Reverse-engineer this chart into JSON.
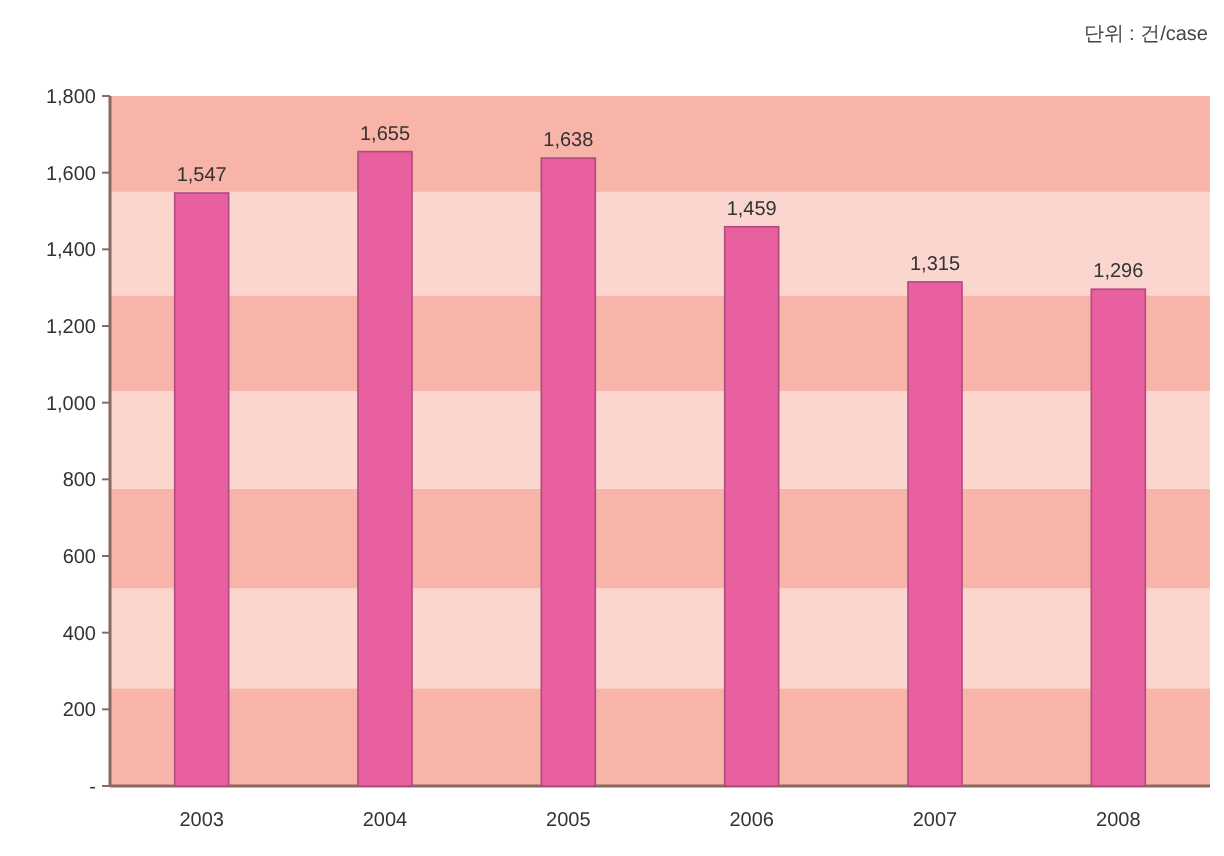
{
  "chart_data": {
    "type": "bar",
    "categories": [
      "2003",
      "2004",
      "2005",
      "2006",
      "2007",
      "2008"
    ],
    "values": [
      1547,
      1655,
      1638,
      1459,
      1315,
      1296
    ],
    "value_labels": [
      "1,547",
      "1,655",
      "1,638",
      "1,459",
      "1,315",
      "1,296"
    ],
    "color": "#e8609f",
    "ylim": [
      0,
      1800
    ],
    "yticks": [
      {
        "value": 0,
        "label": "-"
      },
      200,
      400,
      600,
      800,
      {
        "value": 1000,
        "label": "1,000"
      },
      {
        "value": 1200,
        "label": "1,200"
      },
      {
        "value": 1400,
        "label": "1,400"
      },
      {
        "value": 1600,
        "label": "1,600"
      },
      {
        "value": 1800,
        "label": "1,800"
      }
    ],
    "bands": [
      {
        "axis": "y",
        "from": 0,
        "to": 255,
        "color": "#f8b4a8"
      },
      {
        "axis": "y",
        "from": 255,
        "to": 515,
        "color": "#fbd6cf"
      },
      {
        "axis": "y",
        "from": 515,
        "to": 775,
        "color": "#f8b4a8"
      },
      {
        "axis": "y",
        "from": 775,
        "to": 1030,
        "color": "#fbd6cf"
      },
      {
        "axis": "y",
        "from": 1030,
        "to": 1280,
        "color": "#f8b4a8"
      },
      {
        "axis": "y",
        "from": 1280,
        "to": 1550,
        "color": "#fbd6cf"
      },
      {
        "axis": "y",
        "from": 1550,
        "to": 1800,
        "color": "#f8b4a8"
      }
    ],
    "annotations": [
      "단위 : 건/case"
    ]
  }
}
